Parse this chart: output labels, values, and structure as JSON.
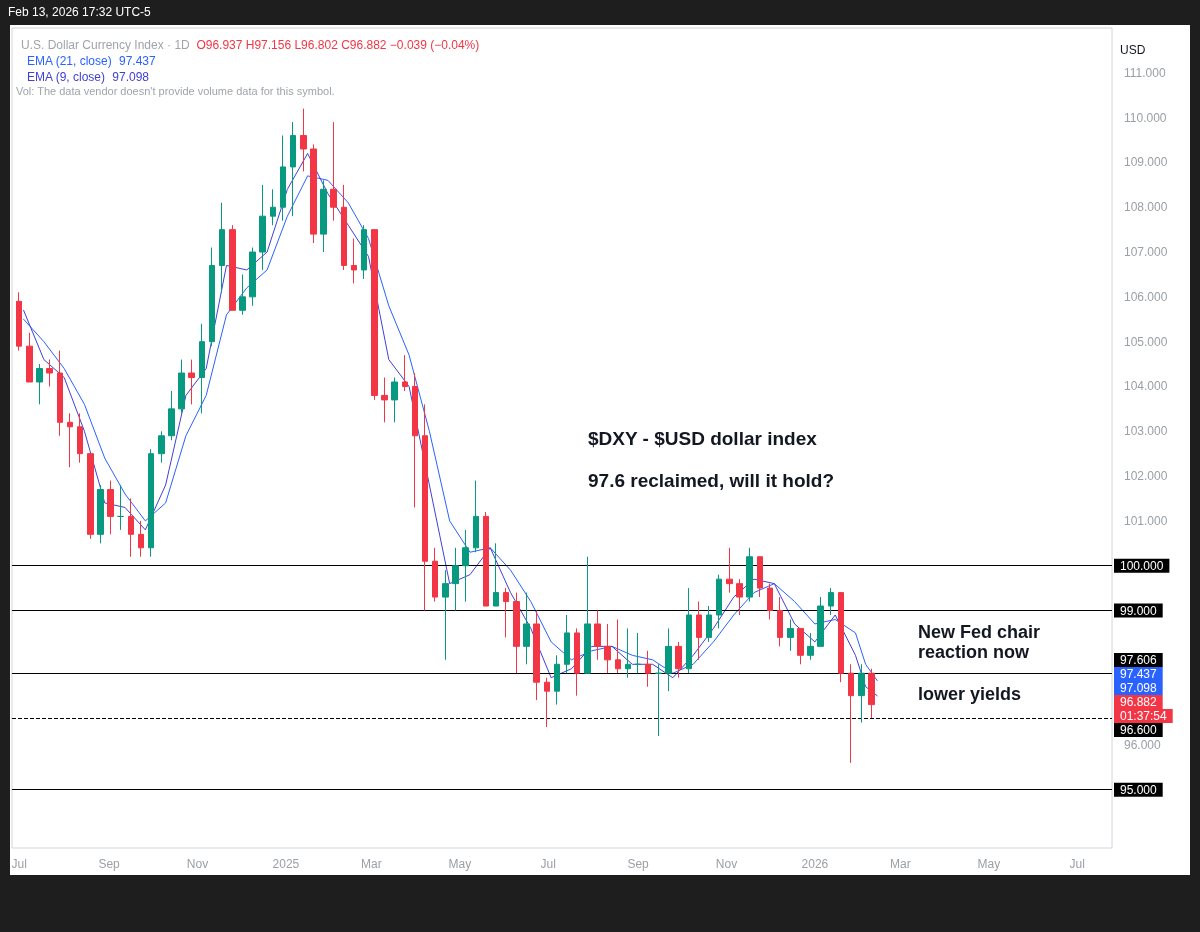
{
  "chart_data": {
    "type": "candlestick",
    "title": "U.S. Dollar Currency Index · 1D",
    "subtitle": "O96.937 H97.156 L96.802 C96.882 −0.039 (−0.04%)",
    "ylabel": "USD",
    "x": [
      "2024-07-01",
      "2024-07-08",
      "2024-07-15",
      "2024-07-22",
      "2024-07-29",
      "2024-08-05",
      "2024-08-12",
      "2024-08-19",
      "2024-08-26",
      "2024-09-02",
      "2024-09-09",
      "2024-09-16",
      "2024-09-23",
      "2024-09-30",
      "2024-10-07",
      "2024-10-14",
      "2024-10-21",
      "2024-10-28",
      "2024-11-04",
      "2024-11-11",
      "2024-11-18",
      "2024-11-25",
      "2024-12-02",
      "2024-12-09",
      "2024-12-16",
      "2024-12-23",
      "2024-12-30",
      "2025-01-06",
      "2025-01-13",
      "2025-01-20",
      "2025-01-27",
      "2025-02-03",
      "2025-02-10",
      "2025-02-17",
      "2025-02-24",
      "2025-03-03",
      "2025-03-10",
      "2025-03-17",
      "2025-03-24",
      "2025-03-31",
      "2025-04-07",
      "2025-04-14",
      "2025-04-21",
      "2025-04-28",
      "2025-05-05",
      "2025-05-12",
      "2025-05-19",
      "2025-05-26",
      "2025-06-02",
      "2025-06-09",
      "2025-06-16",
      "2025-06-23",
      "2025-06-30",
      "2025-07-07",
      "2025-07-14",
      "2025-07-21",
      "2025-07-28",
      "2025-08-04",
      "2025-08-11",
      "2025-08-18",
      "2025-08-25",
      "2025-09-01",
      "2025-09-08",
      "2025-09-15",
      "2025-09-22",
      "2025-09-29",
      "2025-10-06",
      "2025-10-13",
      "2025-10-20",
      "2025-10-27",
      "2025-11-03",
      "2025-11-10",
      "2025-11-17",
      "2025-11-24",
      "2025-12-01",
      "2025-12-08",
      "2025-12-15",
      "2025-12-22",
      "2025-12-29",
      "2026-01-05",
      "2026-01-12",
      "2026-01-19",
      "2026-01-26",
      "2026-02-02",
      "2026-02-09"
    ],
    "ohlc": [
      [
        105.9,
        106.1,
        104.8,
        104.9
      ],
      [
        104.9,
        105.2,
        104.1,
        104.1
      ],
      [
        104.1,
        104.5,
        103.6,
        104.4
      ],
      [
        104.4,
        104.6,
        104.0,
        104.3
      ],
      [
        104.3,
        104.8,
        102.9,
        103.2
      ],
      [
        103.2,
        103.4,
        102.2,
        103.1
      ],
      [
        103.1,
        103.4,
        102.3,
        102.5
      ],
      [
        102.5,
        102.5,
        100.6,
        100.7
      ],
      [
        100.7,
        101.8,
        100.5,
        101.7
      ],
      [
        101.7,
        101.9,
        100.7,
        101.1
      ],
      [
        101.1,
        101.8,
        100.8,
        101.1
      ],
      [
        101.1,
        101.5,
        100.2,
        100.7
      ],
      [
        100.7,
        101.0,
        100.2,
        100.4
      ],
      [
        100.4,
        102.6,
        100.2,
        102.5
      ],
      [
        102.5,
        103.0,
        102.3,
        102.9
      ],
      [
        102.9,
        103.9,
        102.8,
        103.5
      ],
      [
        103.5,
        104.6,
        103.4,
        104.3
      ],
      [
        104.3,
        104.6,
        103.6,
        104.2
      ],
      [
        104.2,
        105.4,
        103.4,
        105.0
      ],
      [
        105.0,
        107.1,
        104.9,
        106.7
      ],
      [
        106.7,
        108.1,
        106.1,
        107.5
      ],
      [
        107.5,
        107.6,
        105.7,
        105.7
      ],
      [
        105.7,
        106.5,
        105.6,
        106.0
      ],
      [
        106.0,
        107.1,
        105.8,
        107.0
      ],
      [
        107.0,
        108.5,
        106.6,
        107.8
      ],
      [
        107.8,
        108.4,
        107.6,
        108.0
      ],
      [
        108.0,
        109.6,
        107.7,
        108.9
      ],
      [
        108.9,
        109.9,
        107.8,
        109.6
      ],
      [
        109.6,
        110.2,
        108.8,
        109.3
      ],
      [
        109.3,
        109.4,
        107.2,
        107.4
      ],
      [
        107.4,
        108.6,
        107.0,
        108.4
      ],
      [
        108.4,
        109.9,
        107.7,
        108.0
      ],
      [
        108.0,
        108.5,
        106.6,
        106.7
      ],
      [
        106.7,
        107.3,
        106.3,
        106.6
      ],
      [
        106.6,
        107.6,
        106.4,
        107.5
      ],
      [
        107.5,
        107.5,
        103.7,
        103.8
      ],
      [
        103.8,
        104.2,
        103.2,
        103.7
      ],
      [
        103.7,
        104.2,
        103.2,
        104.1
      ],
      [
        104.1,
        104.7,
        103.9,
        104.0
      ],
      [
        104.0,
        104.3,
        101.3,
        102.9
      ],
      [
        102.9,
        103.6,
        99.0,
        100.1
      ],
      [
        100.1,
        100.4,
        99.2,
        99.3
      ],
      [
        99.3,
        99.9,
        97.9,
        99.6
      ],
      [
        99.6,
        100.4,
        99.0,
        100.0
      ],
      [
        100.0,
        100.8,
        99.2,
        100.4
      ],
      [
        100.4,
        101.9,
        100.3,
        101.1
      ],
      [
        101.1,
        101.2,
        99.1,
        99.1
      ],
      [
        99.1,
        100.5,
        99.1,
        99.4
      ],
      [
        99.4,
        99.5,
        98.4,
        99.2
      ],
      [
        99.2,
        99.4,
        97.6,
        98.2
      ],
      [
        98.2,
        99.4,
        97.8,
        98.7
      ],
      [
        98.7,
        99.0,
        97.0,
        97.4
      ],
      [
        97.4,
        97.5,
        96.4,
        97.2
      ],
      [
        97.2,
        98.0,
        96.9,
        97.8
      ],
      [
        97.8,
        98.9,
        97.6,
        98.5
      ],
      [
        98.5,
        98.6,
        97.1,
        97.6
      ],
      [
        97.6,
        100.2,
        97.6,
        98.7
      ],
      [
        98.7,
        99.0,
        97.9,
        98.2
      ],
      [
        98.2,
        98.7,
        97.6,
        97.9
      ],
      [
        97.9,
        98.8,
        97.6,
        97.7
      ],
      [
        97.7,
        98.6,
        97.5,
        97.8
      ],
      [
        97.8,
        98.5,
        97.6,
        97.8
      ],
      [
        97.8,
        98.1,
        97.3,
        97.6
      ],
      [
        97.6,
        97.8,
        96.2,
        97.6
      ],
      [
        97.6,
        98.6,
        97.2,
        98.2
      ],
      [
        98.2,
        98.3,
        97.5,
        97.7
      ],
      [
        97.7,
        99.5,
        97.6,
        98.9
      ],
      [
        98.9,
        99.2,
        97.9,
        98.4
      ],
      [
        98.4,
        99.1,
        98.3,
        98.9
      ],
      [
        98.9,
        99.8,
        98.6,
        99.7
      ],
      [
        99.7,
        100.4,
        99.4,
        99.6
      ],
      [
        99.6,
        99.7,
        98.9,
        99.3
      ],
      [
        99.3,
        100.4,
        99.2,
        100.2
      ],
      [
        100.2,
        100.2,
        99.3,
        99.5
      ],
      [
        99.5,
        99.6,
        98.8,
        99.0
      ],
      [
        99.0,
        99.3,
        98.2,
        98.4
      ],
      [
        98.4,
        98.8,
        98.1,
        98.6
      ],
      [
        98.6,
        98.6,
        97.8,
        98.0
      ],
      [
        98.0,
        98.5,
        97.9,
        98.2
      ],
      [
        98.2,
        99.3,
        98.2,
        99.1
      ],
      [
        99.1,
        99.5,
        98.9,
        99.4
      ],
      [
        99.4,
        99.4,
        97.4,
        97.6
      ],
      [
        97.6,
        97.8,
        95.6,
        97.1
      ],
      [
        97.1,
        97.8,
        96.5,
        97.6
      ],
      [
        97.6,
        97.7,
        96.6,
        96.9
      ]
    ],
    "colors": [
      "#f23645",
      "#f23645",
      "#089981",
      "#f23645",
      "#f23645",
      "#f23645",
      "#f23645",
      "#f23645",
      "#089981",
      "#f23645",
      "#089981",
      "#f23645",
      "#f23645",
      "#089981",
      "#089981",
      "#089981",
      "#089981",
      "#f23645",
      "#089981",
      "#089981",
      "#089981",
      "#f23645",
      "#089981",
      "#089981",
      "#089981",
      "#089981",
      "#089981",
      "#089981",
      "#f23645",
      "#f23645",
      "#089981",
      "#f23645",
      "#f23645",
      "#f23645",
      "#089981",
      "#f23645",
      "#f23645",
      "#089981",
      "#f23645",
      "#f23645",
      "#f23645",
      "#f23645",
      "#089981",
      "#089981",
      "#089981",
      "#089981",
      "#f23645",
      "#089981",
      "#f23645",
      "#f23645",
      "#089981",
      "#f23645",
      "#f23645",
      "#089981",
      "#089981",
      "#f23645",
      "#089981",
      "#f23645",
      "#f23645",
      "#f23645",
      "#089981",
      "#089981",
      "#f23645",
      "#089981",
      "#089981",
      "#f23645",
      "#089981",
      "#f23645",
      "#089981",
      "#089981",
      "#f23645",
      "#f23645",
      "#089981",
      "#f23645",
      "#f23645",
      "#f23645",
      "#089981",
      "#f23645",
      "#089981",
      "#089981",
      "#089981",
      "#f23645",
      "#f23645",
      "#089981",
      "#f23645"
    ],
    "series": [
      {
        "name": "EMA (21, close)",
        "type": "line",
        "color": "#2962ff",
        "x": [
          "2024-07-04",
          "2024-07-18",
          "2024-08-01",
          "2024-08-15",
          "2024-08-29",
          "2024-09-12",
          "2024-09-26",
          "2024-10-10",
          "2024-10-24",
          "2024-11-07",
          "2024-11-21",
          "2024-12-05",
          "2024-12-19",
          "2025-01-02",
          "2025-01-16",
          "2025-01-30",
          "2025-02-13",
          "2025-02-27",
          "2025-03-13",
          "2025-03-27",
          "2025-04-10",
          "2025-04-24",
          "2025-05-08",
          "2025-05-22",
          "2025-06-05",
          "2025-06-19",
          "2025-07-03",
          "2025-07-17",
          "2025-07-31",
          "2025-08-14",
          "2025-08-28",
          "2025-09-11",
          "2025-09-25",
          "2025-10-09",
          "2025-10-23",
          "2025-11-06",
          "2025-11-20",
          "2025-12-04",
          "2025-12-18",
          "2026-01-01",
          "2026-01-15",
          "2026-01-29",
          "2026-02-05",
          "2026-02-13"
        ],
        "values": [
          105.5,
          105.0,
          104.4,
          103.6,
          102.4,
          101.6,
          101.0,
          101.4,
          102.9,
          103.8,
          105.6,
          106.2,
          106.6,
          107.8,
          108.7,
          108.6,
          108.1,
          107.3,
          105.8,
          104.7,
          103.0,
          101.0,
          100.3,
          100.4,
          99.9,
          99.2,
          98.3,
          97.9,
          98.1,
          98.2,
          98.0,
          97.9,
          97.6,
          97.8,
          98.3,
          98.9,
          99.4,
          99.6,
          99.2,
          98.7,
          98.8,
          98.5,
          97.8,
          97.437
        ]
      },
      {
        "name": "EMA (9, close)",
        "type": "line",
        "color": "#4040d8",
        "x": [
          "2024-07-04",
          "2024-07-18",
          "2024-08-01",
          "2024-08-15",
          "2024-08-29",
          "2024-09-12",
          "2024-09-26",
          "2024-10-10",
          "2024-10-24",
          "2024-11-07",
          "2024-11-21",
          "2024-12-05",
          "2024-12-19",
          "2025-01-02",
          "2025-01-16",
          "2025-01-30",
          "2025-02-13",
          "2025-02-27",
          "2025-03-13",
          "2025-03-27",
          "2025-04-10",
          "2025-04-24",
          "2025-05-08",
          "2025-05-22",
          "2025-06-05",
          "2025-06-19",
          "2025-07-03",
          "2025-07-17",
          "2025-07-31",
          "2025-08-14",
          "2025-08-28",
          "2025-09-11",
          "2025-09-25",
          "2025-10-09",
          "2025-10-23",
          "2025-11-06",
          "2025-11-20",
          "2025-12-04",
          "2025-12-18",
          "2026-01-01",
          "2026-01-15",
          "2026-01-29",
          "2026-02-05",
          "2026-02-13"
        ],
        "values": [
          105.7,
          104.6,
          104.2,
          103.0,
          101.4,
          101.3,
          100.8,
          101.8,
          103.8,
          104.4,
          106.7,
          106.6,
          107.0,
          108.4,
          109.2,
          108.3,
          107.6,
          106.9,
          104.6,
          104.0,
          101.8,
          99.6,
          99.8,
          100.4,
          99.4,
          98.6,
          97.5,
          97.7,
          98.2,
          98.2,
          97.8,
          97.8,
          97.5,
          98.0,
          98.6,
          99.3,
          99.7,
          99.6,
          98.7,
          98.3,
          98.9,
          98.0,
          97.3,
          97.098
        ]
      }
    ],
    "marker": "none",
    "legend": "top left",
    "xlim": [
      "2024-06-26",
      "2026-07-25"
    ],
    "xticks": [
      {
        "value": "2024-07-01",
        "label": "Jul"
      },
      {
        "value": "2024-09-01",
        "label": "Sep"
      },
      {
        "value": "2024-11-01",
        "label": "Nov"
      },
      {
        "value": "2025-01-01",
        "label": "2025"
      },
      {
        "value": "2025-03-01",
        "label": "Mar"
      },
      {
        "value": "2025-05-01",
        "label": "May"
      },
      {
        "value": "2025-07-01",
        "label": "Jul"
      },
      {
        "value": "2025-09-01",
        "label": "Sep"
      },
      {
        "value": "2025-11-01",
        "label": "Nov"
      },
      {
        "value": "2026-01-01",
        "label": "2026"
      },
      {
        "value": "2026-03-01",
        "label": "Mar"
      },
      {
        "value": "2026-05-01",
        "label": "May"
      },
      {
        "value": "2026-07-01",
        "label": "Jul"
      }
    ],
    "ylim": [
      93.7,
      112
    ],
    "yticks": [
      {
        "value": 96,
        "label": "96.000"
      },
      {
        "value": 101,
        "label": "101.000"
      },
      {
        "value": 102,
        "label": "102.000"
      },
      {
        "value": 103,
        "label": "103.000"
      },
      {
        "value": 104,
        "label": "104.000"
      },
      {
        "value": 105,
        "label": "105.000"
      },
      {
        "value": 106,
        "label": "106.000"
      },
      {
        "value": 107,
        "label": "107.000"
      },
      {
        "value": 108,
        "label": "108.000"
      },
      {
        "value": 109,
        "label": "109.000"
      },
      {
        "value": 110,
        "label": "110.000"
      },
      {
        "value": 111,
        "label": "111.000"
      }
    ],
    "ref_lines": [
      {
        "axis": "y",
        "value": 100,
        "label": "100.000",
        "color": "#000000"
      },
      {
        "axis": "y",
        "value": 99,
        "label": "99.000",
        "color": "#000000"
      },
      {
        "axis": "y",
        "value": 97.606,
        "label": "97.606",
        "color": "#000000"
      },
      {
        "axis": "y",
        "value": 96.6,
        "label": "96.600",
        "color": "#000000",
        "line_style": "dashed"
      },
      {
        "axis": "y",
        "value": 95,
        "label": "95.000",
        "color": "#000000"
      }
    ],
    "annotations": [
      "Feb 13, 2026 17:32 UTC-5",
      "Vol: The data vendor doesn't provide volume data for this symbol.",
      "$DXY - $USD dollar index",
      "97.6 reclaimed, will it hold?",
      "New Fed chair reaction now",
      "lower yields",
      "97.437",
      "97.098",
      "96.882",
      "01:37:54"
    ]
  }
}
